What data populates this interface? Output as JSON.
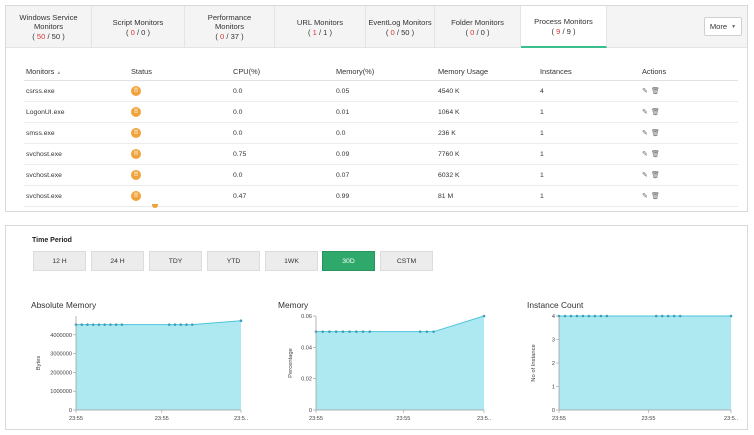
{
  "tabs": [
    {
      "label": "Windows Service Monitors",
      "active_count": "50",
      "total": "50"
    },
    {
      "label": "Script Monitors",
      "active_count": "0",
      "total": "0"
    },
    {
      "label": "Performance Monitors",
      "active_count": "0",
      "total": "37"
    },
    {
      "label": "URL Monitors",
      "active_count": "1",
      "total": "1"
    },
    {
      "label": "EventLog Monitors",
      "active_count": "0",
      "total": "50"
    },
    {
      "label": "Folder Monitors",
      "active_count": "0",
      "total": "0"
    },
    {
      "label": "Process Monitors",
      "active_count": "9",
      "total": "9"
    }
  ],
  "more_label": "More",
  "table": {
    "headers": [
      "Monitors",
      "Status",
      "CPU(%)",
      "Memory(%)",
      "Memory Usage",
      "Instances",
      "Actions"
    ],
    "rows": [
      {
        "name": "csrss.exe",
        "cpu": "0.0",
        "mem": "0.05",
        "usage": "4540 K",
        "inst": "4"
      },
      {
        "name": "LogonUI.exe",
        "cpu": "0.0",
        "mem": "0.01",
        "usage": "1064 K",
        "inst": "1"
      },
      {
        "name": "smss.exe",
        "cpu": "0.0",
        "mem": "0.0",
        "usage": "236 K",
        "inst": "1"
      },
      {
        "name": "svchost.exe",
        "cpu": "0.75",
        "mem": "0.09",
        "usage": "7760 K",
        "inst": "1"
      },
      {
        "name": "svchost.exe",
        "cpu": "0.0",
        "mem": "0.07",
        "usage": "6032 K",
        "inst": "1"
      },
      {
        "name": "svchost.exe",
        "cpu": "0.47",
        "mem": "0.99",
        "usage": "81 M",
        "inst": "1"
      }
    ]
  },
  "time_period": {
    "label": "Time Period",
    "buttons": [
      "12 H",
      "24 H",
      "TDY",
      "YTD",
      "1WK",
      "30D",
      "CSTM"
    ],
    "selected": "30D"
  },
  "colors": {
    "fill": "#aee9f2",
    "line": "#4cc3d9",
    "dot": "#3aa0b8",
    "active": "#2fa86b",
    "status": "#f0a33a",
    "accent_red": "#d9383a"
  },
  "chart_data": [
    {
      "type": "area",
      "title": "Absolute Memory",
      "ylabel": "Bytes",
      "ylim": [
        0,
        5000000
      ],
      "yticks": [
        "0",
        "1000000",
        "2000000",
        "3000000",
        "4000000"
      ],
      "xticks": [
        "23:55",
        "23:55",
        "23:5.."
      ],
      "x": [
        0,
        0.08,
        0.16,
        0.24,
        0.32,
        0.4,
        0.48,
        0.56,
        0.64,
        1.3,
        1.38,
        1.46,
        1.54,
        1.62,
        2.3
      ],
      "y": [
        4540000,
        4540000,
        4540000,
        4540000,
        4540000,
        4540000,
        4540000,
        4540000,
        4540000,
        4540000,
        4540000,
        4540000,
        4540000,
        4540000,
        4750000
      ]
    },
    {
      "type": "area",
      "title": "Memory",
      "ylabel": "Percentage",
      "ylim": [
        0,
        0.06
      ],
      "yticks": [
        "0",
        "0.02",
        "0.04",
        "0.06"
      ],
      "xticks": [
        "23:55",
        "23:55",
        "23:5.."
      ],
      "x": [
        0,
        0.1,
        0.2,
        0.3,
        0.4,
        0.5,
        0.6,
        0.7,
        0.8,
        1.55,
        1.65,
        1.75,
        2.5
      ],
      "y": [
        0.05,
        0.05,
        0.05,
        0.05,
        0.05,
        0.05,
        0.05,
        0.05,
        0.05,
        0.05,
        0.05,
        0.05,
        0.06
      ]
    },
    {
      "type": "area",
      "title": "Instance Count",
      "ylabel": "No of Instance",
      "ylim": [
        0,
        4
      ],
      "yticks": [
        "0",
        "1",
        "2",
        "3",
        "4"
      ],
      "xticks": [
        "23:55",
        "23:55",
        "23:5.."
      ],
      "x": [
        0,
        0.08,
        0.16,
        0.24,
        0.32,
        0.4,
        0.48,
        0.56,
        0.64,
        1.3,
        1.38,
        1.46,
        1.54,
        1.62,
        2.3
      ],
      "y": [
        4,
        4,
        4,
        4,
        4,
        4,
        4,
        4,
        4,
        4,
        4,
        4,
        4,
        4,
        4
      ]
    }
  ]
}
